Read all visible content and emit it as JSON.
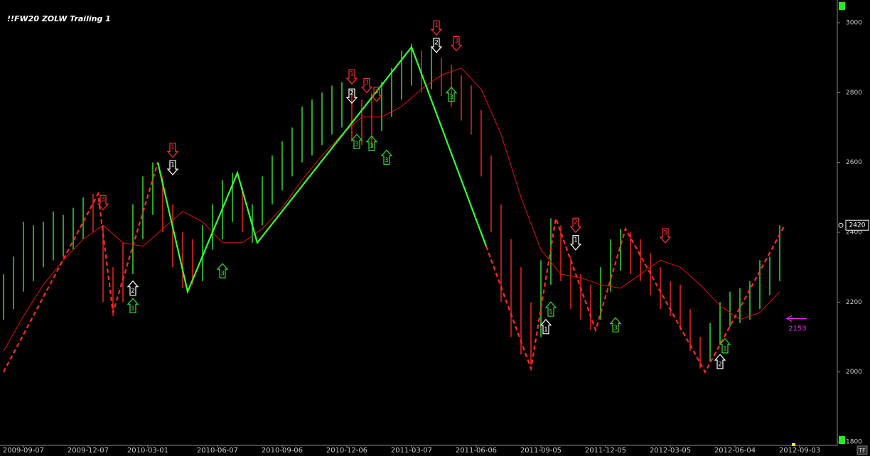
{
  "chart_data": {
    "type": "price-bars",
    "title": "!!FW20 ZOLW Trailing 1",
    "corner_label": "TF",
    "xlim": [
      -0.71,
      167.57
    ],
    "ylim": [
      1790,
      3065
    ],
    "yticks": [
      1800,
      2000,
      2200,
      2400,
      2600,
      2800,
      3000
    ],
    "xticks": [
      {
        "value": 4,
        "label": "2009-09-07"
      },
      {
        "value": 17,
        "label": "2009-12-07"
      },
      {
        "value": 29,
        "label": "2010-03-01"
      },
      {
        "value": 43,
        "label": "2010-06-07"
      },
      {
        "value": 56,
        "label": "2010-09-06"
      },
      {
        "value": 69,
        "label": "2010-12-06"
      },
      {
        "value": 82,
        "label": "2011-03-07"
      },
      {
        "value": 95,
        "label": "2011-06-06"
      },
      {
        "value": 108,
        "label": "2011-09-05"
      },
      {
        "value": 121,
        "label": "2011-12-05"
      },
      {
        "value": 134,
        "label": "2012-03-05"
      },
      {
        "value": 147,
        "label": "2012-06-04"
      },
      {
        "value": 160,
        "label": "2012-09-03"
      }
    ],
    "bars": {
      "x": [
        0,
        2,
        4,
        6,
        8,
        10,
        12,
        14,
        16,
        18,
        20,
        22,
        24,
        26,
        28,
        30,
        32,
        34,
        36,
        38,
        40,
        42,
        44,
        46,
        48,
        50,
        52,
        54,
        56,
        58,
        60,
        62,
        64,
        66,
        68,
        70,
        72,
        74,
        76,
        78,
        80,
        82,
        84,
        86,
        88,
        90,
        92,
        94,
        96,
        98,
        100,
        102,
        104,
        106,
        108,
        110,
        112,
        114,
        116,
        118,
        120,
        122,
        124,
        126,
        128,
        130,
        132,
        134,
        136,
        138,
        140,
        142,
        144,
        146,
        148,
        150,
        152,
        154,
        156
      ],
      "low": [
        2150,
        2180,
        2230,
        2260,
        2300,
        2320,
        2330,
        2350,
        2380,
        2400,
        2200,
        2160,
        2200,
        2280,
        2380,
        2450,
        2400,
        2300,
        2240,
        2250,
        2260,
        2350,
        2380,
        2430,
        2400,
        2370,
        2420,
        2480,
        2520,
        2560,
        2600,
        2620,
        2650,
        2680,
        2700,
        2660,
        2650,
        2640,
        2690,
        2730,
        2780,
        2820,
        2800,
        2810,
        2790,
        2760,
        2720,
        2680,
        2560,
        2400,
        2200,
        2100,
        2050,
        2020,
        2100,
        2250,
        2260,
        2180,
        2150,
        2120,
        2150,
        2230,
        2290,
        2280,
        2260,
        2220,
        2180,
        2160,
        2120,
        2060,
        2010,
        2030,
        2080,
        2130,
        2140,
        2150,
        2180,
        2220,
        2260
      ],
      "high": [
        2280,
        2330,
        2430,
        2420,
        2430,
        2460,
        2450,
        2470,
        2500,
        2510,
        2420,
        2300,
        2370,
        2480,
        2560,
        2600,
        2560,
        2480,
        2400,
        2380,
        2420,
        2480,
        2550,
        2570,
        2530,
        2480,
        2560,
        2620,
        2660,
        2700,
        2760,
        2780,
        2800,
        2820,
        2830,
        2810,
        2780,
        2800,
        2830,
        2870,
        2920,
        2940,
        2920,
        2930,
        2900,
        2880,
        2850,
        2820,
        2750,
        2620,
        2480,
        2380,
        2300,
        2200,
        2320,
        2440,
        2420,
        2330,
        2280,
        2250,
        2300,
        2380,
        2410,
        2400,
        2380,
        2340,
        2300,
        2260,
        2250,
        2180,
        2100,
        2140,
        2200,
        2230,
        2240,
        2260,
        2320,
        2330,
        2420
      ],
      "colors": [
        "#33cc33",
        "#33cc33",
        "#33cc33",
        "#33cc33",
        "#33cc33",
        "#33cc33",
        "#33cc33",
        "#33cc33",
        "#33cc33",
        "#dd2222",
        "#dd2222",
        "#dd2222",
        "#dd2222",
        "#33cc33",
        "#33cc33",
        "#33cc33",
        "#dd2222",
        "#dd2222",
        "#dd2222",
        "#dd2222",
        "#33cc33",
        "#33cc33",
        "#33cc33",
        "#33cc33",
        "#dd2222",
        "#33cc33",
        "#33cc33",
        "#33cc33",
        "#33cc33",
        "#33cc33",
        "#33cc33",
        "#33cc33",
        "#33cc33",
        "#33cc33",
        "#33cc33",
        "#dd2222",
        "#dd2222",
        "#dd2222",
        "#33cc33",
        "#33cc33",
        "#33cc33",
        "#33cc33",
        "#dd2222",
        "#33cc33",
        "#dd2222",
        "#dd2222",
        "#dd2222",
        "#dd2222",
        "#dd2222",
        "#dd2222",
        "#dd2222",
        "#dd2222",
        "#dd2222",
        "#dd2222",
        "#33cc33",
        "#33cc33",
        "#dd2222",
        "#dd2222",
        "#dd2222",
        "#dd2222",
        "#33cc33",
        "#33cc33",
        "#33cc33",
        "#dd2222",
        "#dd2222",
        "#dd2222",
        "#dd2222",
        "#dd2222",
        "#dd2222",
        "#dd2222",
        "#dd2222",
        "#33cc33",
        "#33cc33",
        "#33cc33",
        "#33cc33",
        "#33cc33",
        "#33cc33",
        "#33cc33",
        "#33cc33"
      ]
    },
    "moving_average": {
      "color": "#e01010",
      "x": [
        0,
        4,
        8,
        12,
        16,
        20,
        24,
        28,
        32,
        36,
        40,
        44,
        48,
        52,
        56,
        60,
        64,
        68,
        72,
        76,
        80,
        84,
        88,
        92,
        96,
        100,
        104,
        108,
        112,
        116,
        120,
        124,
        128,
        132,
        136,
        140,
        144,
        148,
        152,
        156
      ],
      "values": [
        2060,
        2160,
        2250,
        2320,
        2380,
        2420,
        2370,
        2360,
        2410,
        2460,
        2430,
        2370,
        2370,
        2410,
        2470,
        2550,
        2620,
        2680,
        2730,
        2730,
        2760,
        2810,
        2850,
        2870,
        2810,
        2680,
        2500,
        2350,
        2280,
        2270,
        2250,
        2240,
        2280,
        2320,
        2300,
        2250,
        2190,
        2150,
        2170,
        2230
      ]
    },
    "zigzag": {
      "x": [
        0,
        19,
        22,
        31,
        37,
        47,
        51,
        82,
        97,
        106,
        111,
        119,
        125,
        141,
        157
      ],
      "series": [
        {
          "color": "#ff2a2a",
          "dashed": true,
          "values": [
            2000,
            2510,
            2170,
            2600,
            null,
            null,
            null,
            null,
            2360,
            2010,
            2440,
            2120,
            2410,
            2000,
            2420
          ]
        },
        {
          "color": "#33ff33",
          "dashed": false,
          "values": [
            null,
            null,
            null,
            2600,
            2230,
            2570,
            2370,
            2930,
            2360,
            null,
            null,
            null,
            null,
            null,
            null
          ]
        }
      ]
    },
    "signals": [
      {
        "x": 20,
        "price": 2485,
        "label": "3",
        "dir": "down",
        "color": "#ff3030"
      },
      {
        "x": 26,
        "price": 2240,
        "label": "2",
        "dir": "up",
        "color": "#ffffff"
      },
      {
        "x": 26,
        "price": 2190,
        "label": "1",
        "dir": "up",
        "color": "#33dd33"
      },
      {
        "x": 34,
        "price": 2635,
        "label": "1",
        "dir": "down",
        "color": "#ff3030"
      },
      {
        "x": 34,
        "price": 2585,
        "label": "1",
        "dir": "down",
        "color": "#ffffff"
      },
      {
        "x": 44,
        "price": 2290,
        "label": "3",
        "dir": "up",
        "color": "#33dd33"
      },
      {
        "x": 70,
        "price": 2845,
        "label": "1",
        "dir": "down",
        "color": "#ff3030"
      },
      {
        "x": 70,
        "price": 2790,
        "label": "2",
        "dir": "down",
        "color": "#ffffff"
      },
      {
        "x": 73,
        "price": 2820,
        "label": "3",
        "dir": "down",
        "color": "#ff3030"
      },
      {
        "x": 75,
        "price": 2795,
        "label": "3",
        "dir": "down",
        "color": "#ff3030"
      },
      {
        "x": 71,
        "price": 2660,
        "label": "3",
        "dir": "up",
        "color": "#33dd33"
      },
      {
        "x": 74,
        "price": 2655,
        "label": "3",
        "dir": "up",
        "color": "#33dd33"
      },
      {
        "x": 77,
        "price": 2615,
        "label": "3",
        "dir": "up",
        "color": "#33dd33"
      },
      {
        "x": 87,
        "price": 2985,
        "label": "1",
        "dir": "down",
        "color": "#ff3030"
      },
      {
        "x": 87,
        "price": 2935,
        "label": "2",
        "dir": "down",
        "color": "#ffffff"
      },
      {
        "x": 91,
        "price": 2940,
        "label": "3",
        "dir": "down",
        "color": "#ff3030"
      },
      {
        "x": 90,
        "price": 2795,
        "label": "3",
        "dir": "up",
        "color": "#33dd33"
      },
      {
        "x": 109,
        "price": 2130,
        "label": "1",
        "dir": "up",
        "color": "#ffffff"
      },
      {
        "x": 110,
        "price": 2180,
        "label": "1",
        "dir": "up",
        "color": "#33dd33"
      },
      {
        "x": 115,
        "price": 2420,
        "label": "2",
        "dir": "down",
        "color": "#ff3030"
      },
      {
        "x": 115,
        "price": 2370,
        "label": "1",
        "dir": "down",
        "color": "#ffffff"
      },
      {
        "x": 123,
        "price": 2135,
        "label": "3",
        "dir": "up",
        "color": "#33dd33"
      },
      {
        "x": 133,
        "price": 2390,
        "label": "3",
        "dir": "down",
        "color": "#ff3030"
      },
      {
        "x": 144,
        "price": 2030,
        "label": "2",
        "dir": "up",
        "color": "#ffffff"
      },
      {
        "x": 145,
        "price": 2075,
        "label": "1",
        "dir": "up",
        "color": "#33dd33"
      }
    ],
    "last_price": 2420,
    "target": {
      "value": 2153,
      "color": "#ee22ee"
    }
  }
}
